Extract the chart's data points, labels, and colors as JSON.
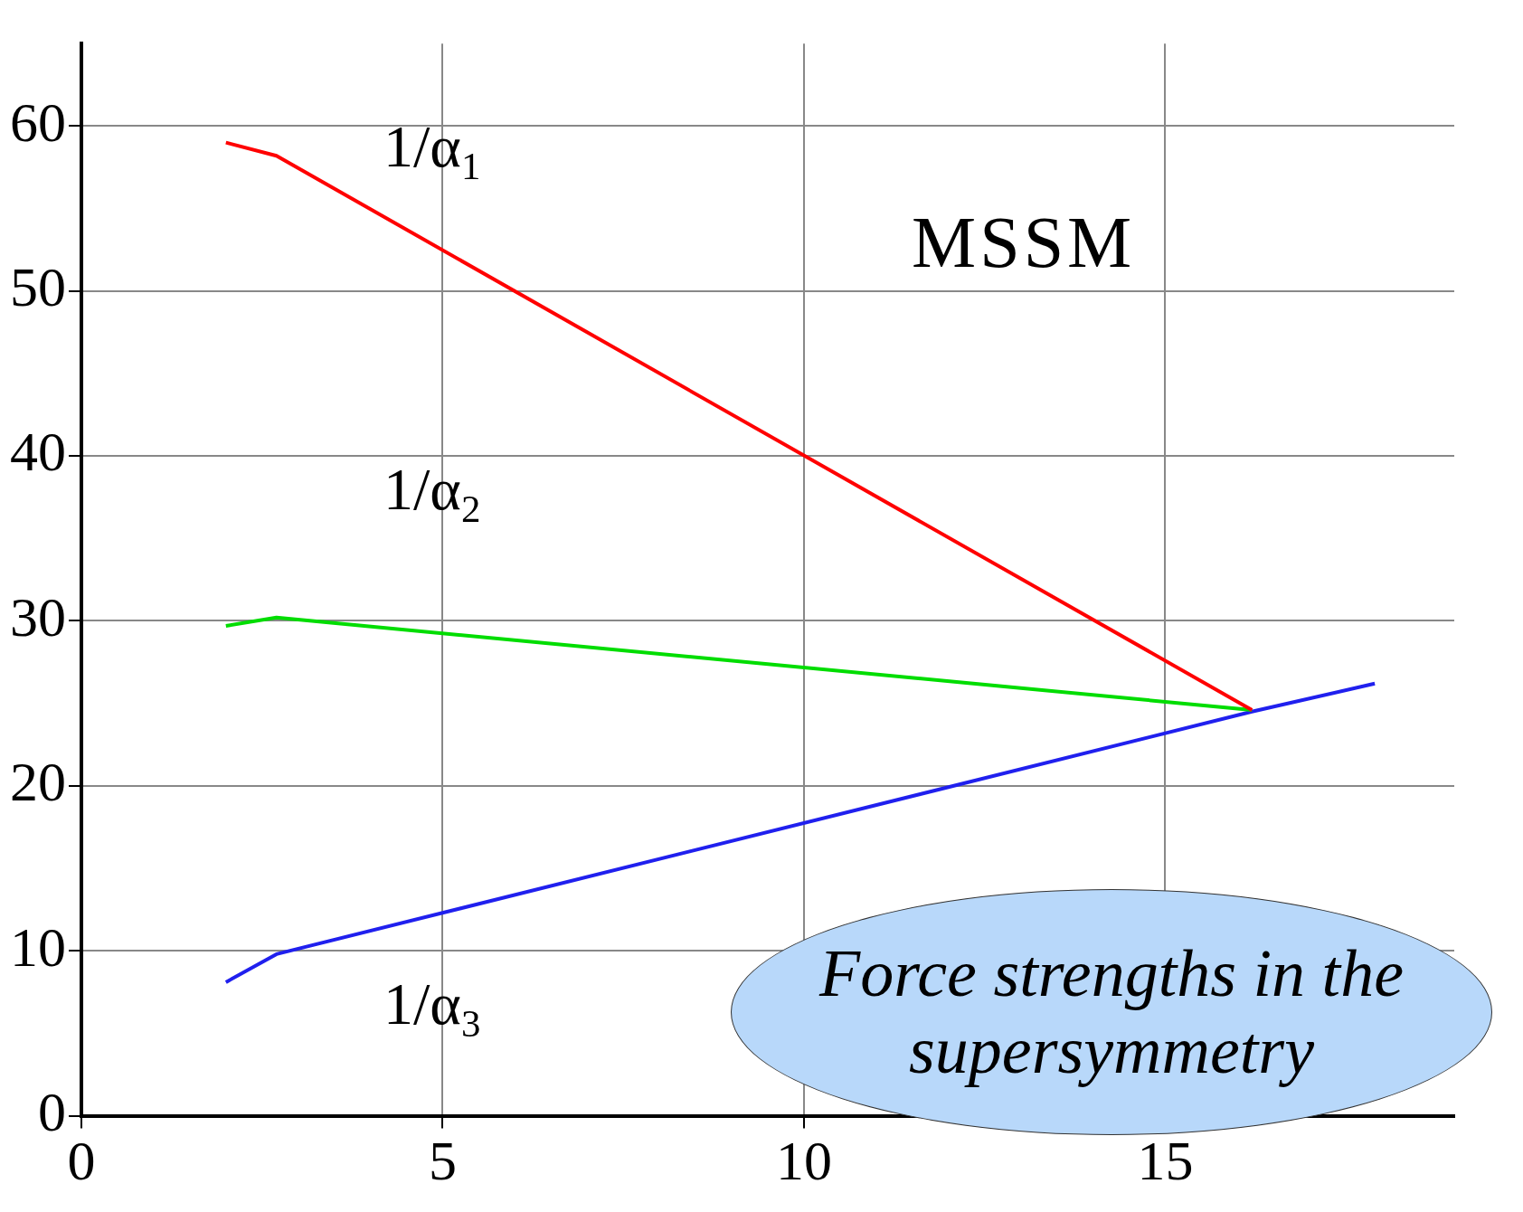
{
  "chart_data": {
    "type": "line",
    "xlim": [
      0,
      19
    ],
    "ylim": [
      0,
      65
    ],
    "xticks": [
      0,
      5,
      10,
      15
    ],
    "yticks": [
      0,
      10,
      20,
      30,
      40,
      50,
      60
    ],
    "grid": true,
    "legend": false,
    "series": [
      {
        "name": "1/α$_{1}$",
        "color": "#ff0000",
        "x": [
          2,
          2.7,
          16.2
        ],
        "values": [
          59,
          58.2,
          24.6
        ]
      },
      {
        "name": "1/α$_{2}$",
        "color": "#00dd00",
        "x": [
          2,
          2.7,
          16.2
        ],
        "values": [
          29.7,
          30.2,
          24.6
        ]
      },
      {
        "name": "1/α$_{3}$",
        "color": "#2020ee",
        "x": [
          2,
          2.7,
          16.2,
          17.9
        ],
        "values": [
          8.1,
          9.8,
          24.5,
          26.2
        ]
      }
    ],
    "annotations": [
      "MSSM",
      "Force strengths in the supersymmetry"
    ]
  }
}
